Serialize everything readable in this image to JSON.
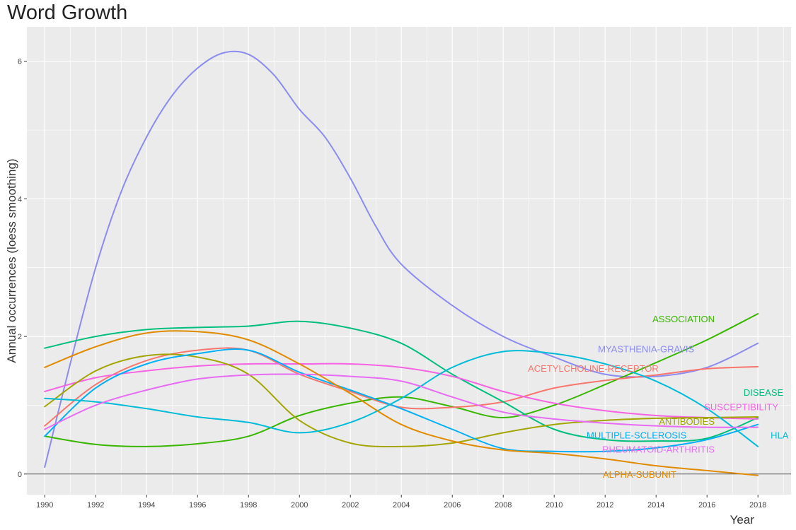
{
  "chart_data": {
    "type": "line",
    "title": "Word Growth",
    "xlabel": "Year",
    "ylabel": "Annual occurrences (loess smoothing)",
    "xlim": [
      1989.3,
      2019.3
    ],
    "ylim": [
      -0.3,
      6.5
    ],
    "x_ticks": [
      1990,
      1992,
      1994,
      1996,
      1998,
      2000,
      2002,
      2004,
      2006,
      2008,
      2010,
      2012,
      2014,
      2016,
      2018
    ],
    "y_ticks": [
      0,
      2,
      4,
      6
    ],
    "grid": true,
    "legend": "end-of-line labels",
    "series": [
      {
        "name": "MYASTHENIA-GRAVIS",
        "color": "#8b8bf0",
        "x": [
          1990,
          1991,
          1992,
          1993,
          1994,
          1995,
          1996,
          1997,
          1998,
          1999,
          2000,
          2001,
          2002,
          2003,
          2004,
          2006,
          2008,
          2010,
          2012,
          2014,
          2016,
          2018
        ],
        "y": [
          0.1,
          1.6,
          3.0,
          4.1,
          4.9,
          5.5,
          5.9,
          6.12,
          6.1,
          5.8,
          5.3,
          4.9,
          4.3,
          3.6,
          3.05,
          2.45,
          2.0,
          1.7,
          1.45,
          1.42,
          1.55,
          1.9
        ]
      },
      {
        "name": "ASSOCIATION",
        "color": "#39b600",
        "x": [
          1990,
          1992,
          1994,
          1996,
          1998,
          2000,
          2002,
          2004,
          2006,
          2008,
          2010,
          2012,
          2014,
          2016,
          2018
        ],
        "y": [
          0.55,
          0.43,
          0.4,
          0.44,
          0.55,
          0.85,
          1.03,
          1.12,
          0.98,
          0.82,
          1.0,
          1.3,
          1.62,
          1.95,
          2.33
        ]
      },
      {
        "name": "ACETYLCHOLINE-RECEPTOR",
        "color": "#f8766d",
        "x": [
          1990,
          1992,
          1994,
          1996,
          1998,
          2000,
          2002,
          2004,
          2006,
          2008,
          2010,
          2012,
          2014,
          2016,
          2018
        ],
        "y": [
          0.7,
          1.3,
          1.65,
          1.8,
          1.8,
          1.45,
          1.2,
          0.97,
          0.97,
          1.05,
          1.25,
          1.36,
          1.44,
          1.53,
          1.56
        ]
      },
      {
        "name": "DISEASE",
        "color": "#00bf7d",
        "x": [
          1990,
          1992,
          1994,
          1996,
          1998,
          2000,
          2002,
          2004,
          2006,
          2008,
          2010,
          2012,
          2014,
          2016,
          2018
        ],
        "y": [
          1.83,
          2.0,
          2.1,
          2.13,
          2.15,
          2.22,
          2.12,
          1.9,
          1.45,
          1.05,
          0.65,
          0.5,
          0.48,
          0.52,
          0.82
        ]
      },
      {
        "name": "SUSCEPTIBILITY",
        "color": "#f564e3",
        "x": [
          1990,
          1992,
          1994,
          1996,
          1998,
          2000,
          2002,
          2004,
          2006,
          2008,
          2010,
          2012,
          2014,
          2016,
          2018
        ],
        "y": [
          1.2,
          1.4,
          1.5,
          1.57,
          1.6,
          1.6,
          1.6,
          1.55,
          1.42,
          1.2,
          1.03,
          0.92,
          0.85,
          0.82,
          0.8
        ]
      },
      {
        "name": "ANTIBODIES",
        "color": "#a3a500",
        "x": [
          1990,
          1992,
          1994,
          1996,
          1998,
          2000,
          2002,
          2004,
          2006,
          2008,
          2010,
          2012,
          2014,
          2016,
          2018
        ],
        "y": [
          0.98,
          1.5,
          1.72,
          1.7,
          1.45,
          0.78,
          0.45,
          0.4,
          0.45,
          0.6,
          0.72,
          0.78,
          0.81,
          0.82,
          0.83
        ]
      },
      {
        "name": "MULTIPLE-SCLEROSIS",
        "color": "#00b0f6",
        "x": [
          1990,
          1992,
          1994,
          1996,
          1998,
          2000,
          2002,
          2004,
          2006,
          2008,
          2010,
          2012,
          2014,
          2016,
          2018
        ],
        "y": [
          0.55,
          1.25,
          1.6,
          1.75,
          1.8,
          1.48,
          1.22,
          0.95,
          0.65,
          0.37,
          0.33,
          0.33,
          0.38,
          0.5,
          0.72
        ]
      },
      {
        "name": "HLA",
        "color": "#00bcd8",
        "x": [
          1990,
          1992,
          1994,
          1996,
          1998,
          2000,
          2002,
          2004,
          2006,
          2008,
          2010,
          2012,
          2014,
          2016,
          2018
        ],
        "y": [
          1.1,
          1.05,
          0.95,
          0.83,
          0.75,
          0.6,
          0.75,
          1.1,
          1.55,
          1.78,
          1.75,
          1.6,
          1.35,
          0.95,
          0.4
        ]
      },
      {
        "name": "RHEUMATOID-ARTHRITIS",
        "color": "#e76bf3",
        "x": [
          1990,
          1992,
          1994,
          1996,
          1998,
          2000,
          2002,
          2004,
          2006,
          2008,
          2010,
          2012,
          2014,
          2016,
          2018
        ],
        "y": [
          0.65,
          1.0,
          1.22,
          1.38,
          1.44,
          1.45,
          1.42,
          1.35,
          1.12,
          0.9,
          0.8,
          0.74,
          0.7,
          0.68,
          0.68
        ]
      },
      {
        "name": "ALPHA-SUBUNIT",
        "color": "#e08b00",
        "x": [
          1990,
          1992,
          1994,
          1996,
          1998,
          2000,
          2002,
          2004,
          2006,
          2008,
          2010,
          2012,
          2014,
          2016,
          2018
        ],
        "y": [
          1.55,
          1.85,
          2.05,
          2.07,
          1.95,
          1.6,
          1.17,
          0.72,
          0.48,
          0.35,
          0.3,
          0.22,
          0.12,
          0.05,
          -0.02
        ]
      }
    ],
    "labels": [
      {
        "text": "ASSOCIATION",
        "color": "#39b600",
        "x": 2016.3,
        "y": 2.25
      },
      {
        "text": "MYASTHENIA-GRAVIS",
        "color": "#8b8bf0",
        "x": 2015.5,
        "y": 1.81
      },
      {
        "text": "ACETYLCHOLINE-RECEPTOR",
        "color": "#f8766d",
        "x": 2014.1,
        "y": 1.53
      },
      {
        "text": "DISEASE",
        "color": "#00bf7d",
        "x": 2019.0,
        "y": 1.18
      },
      {
        "text": "SUSCEPTIBILITY",
        "color": "#f564e3",
        "x": 2018.8,
        "y": 0.97
      },
      {
        "text": "ANTIBODIES",
        "color": "#a3a500",
        "x": 2016.3,
        "y": 0.76
      },
      {
        "text": "MULTIPLE-SCLEROSIS",
        "color": "#00b0f6",
        "x": 2015.2,
        "y": 0.56
      },
      {
        "text": "HLA",
        "color": "#00bcd8",
        "x": 2019.2,
        "y": 0.56
      },
      {
        "text": "RHEUMATOID-ARTHRITIS",
        "color": "#e76bf3",
        "x": 2016.3,
        "y": 0.35
      },
      {
        "text": "ALPHA-SUBUNIT",
        "color": "#e08b00",
        "x": 2014.8,
        "y": -0.01
      }
    ],
    "baseline_y": 0
  }
}
